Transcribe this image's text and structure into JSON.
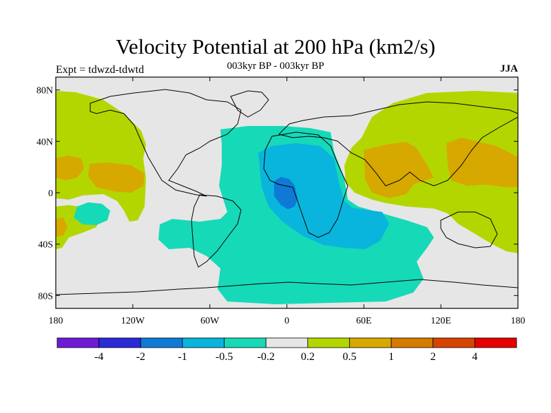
{
  "title": "Velocity Potential at 200 hPa (km2/s)",
  "subtitle": "003kyr BP - 003kyr BP",
  "left_label": "Expt = tdwzd-tdwtd",
  "right_label": "JJA",
  "axes": {
    "lat_ticks": [
      "80N",
      "40N",
      "0",
      "40S",
      "80S"
    ],
    "lon_ticks": [
      "180",
      "120W",
      "60W",
      "0",
      "60E",
      "120E",
      "180"
    ]
  },
  "colorbar": {
    "colors": [
      "#6e1bd6",
      "#2a2ad6",
      "#0f7ad6",
      "#09b5dc",
      "#16d9b8",
      "#e6e6e6",
      "#b4d600",
      "#d6a800",
      "#d67a00",
      "#d64400",
      "#e60000"
    ],
    "labels": [
      "-4",
      "-2",
      "-1",
      "-0.5",
      "-0.2",
      "0.2",
      "0.5",
      "1",
      "2",
      "4"
    ]
  },
  "colors": {
    "background": "#e6e6e6",
    "neg_weak": "#16d9b8",
    "neg_mid": "#09b5dc",
    "neg_strong": "#0f7ad6",
    "pos_weak": "#b4d600",
    "pos_mid": "#d6a800",
    "coast": "#000000"
  }
}
